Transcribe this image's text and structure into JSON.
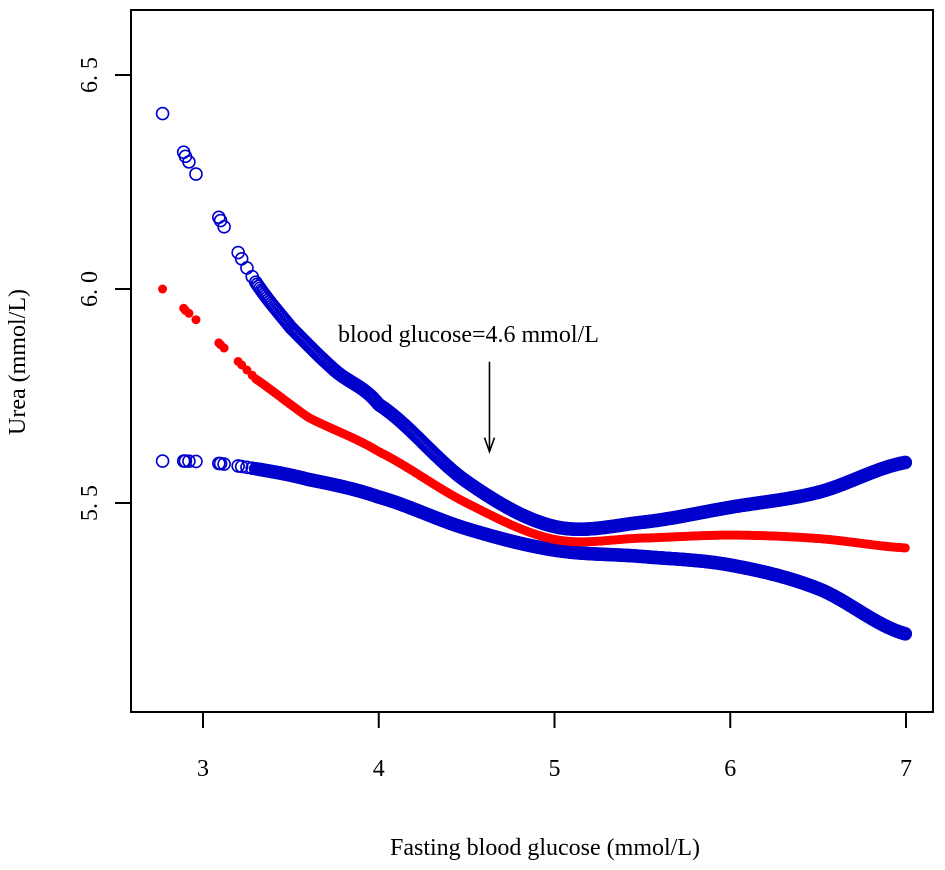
{
  "chart_data": {
    "type": "scatter",
    "title": "",
    "xlabel": "Fasting blood glucose (mmol/L)",
    "ylabel": "Urea (mmol/L)",
    "xlim": [
      2.6,
      7.15
    ],
    "ylim": [
      5.012,
      6.652
    ],
    "xticks": [
      3,
      4,
      5,
      6,
      7
    ],
    "xtick_labels": [
      "3",
      "4",
      "5",
      "6",
      "7"
    ],
    "yticks": [
      5.5,
      6.0,
      6.5
    ],
    "ytick_labels": [
      "5. 5",
      "6. 0",
      "6. 5"
    ],
    "grid": false,
    "annotation": {
      "text": "blood glucose=4.6 mmol/L",
      "arrow_x": 4.63,
      "arrow_from_y": 5.83,
      "arrow_to_y": 5.62
    },
    "sample_x_sparse": [
      2.77,
      2.89,
      2.9,
      2.92,
      2.96,
      3.09,
      3.1,
      3.12,
      3.2,
      3.22,
      3.25,
      3.28
    ],
    "sample_x_dense": {
      "from": 3.3,
      "to": 7.0,
      "step": 0.008
    },
    "series": [
      {
        "name": "Upper CI",
        "color": "#0000CD",
        "marker": "open-circle",
        "knots_x": [
          2.77,
          2.9,
          3.1,
          3.3,
          3.5,
          3.75,
          4.0,
          4.5,
          5.0,
          5.5,
          6.0,
          6.5,
          7.0
        ],
        "knots_y": [
          6.41,
          6.31,
          6.16,
          6.016,
          5.91,
          5.81,
          5.73,
          5.55,
          5.445,
          5.455,
          5.49,
          5.525,
          5.595
        ]
      },
      {
        "name": "Lower CI",
        "color": "#0000CD",
        "marker": "open-circle",
        "knots_x": [
          2.77,
          3.0,
          3.3,
          3.6,
          4.0,
          4.5,
          5.0,
          5.5,
          6.0,
          6.5,
          7.0
        ],
        "knots_y": [
          5.598,
          5.596,
          5.58,
          5.555,
          5.514,
          5.44,
          5.39,
          5.375,
          5.355,
          5.3,
          5.194
        ]
      },
      {
        "name": "Fitted",
        "color": "#FF0000",
        "marker": "filled-circle",
        "knots_x": [
          2.77,
          2.9,
          3.1,
          3.3,
          3.6,
          4.0,
          4.5,
          5.0,
          5.5,
          6.0,
          6.5,
          7.0
        ],
        "knots_y": [
          6.0,
          5.95,
          5.87,
          5.79,
          5.7,
          5.62,
          5.5,
          5.415,
          5.418,
          5.425,
          5.417,
          5.395
        ]
      }
    ]
  }
}
